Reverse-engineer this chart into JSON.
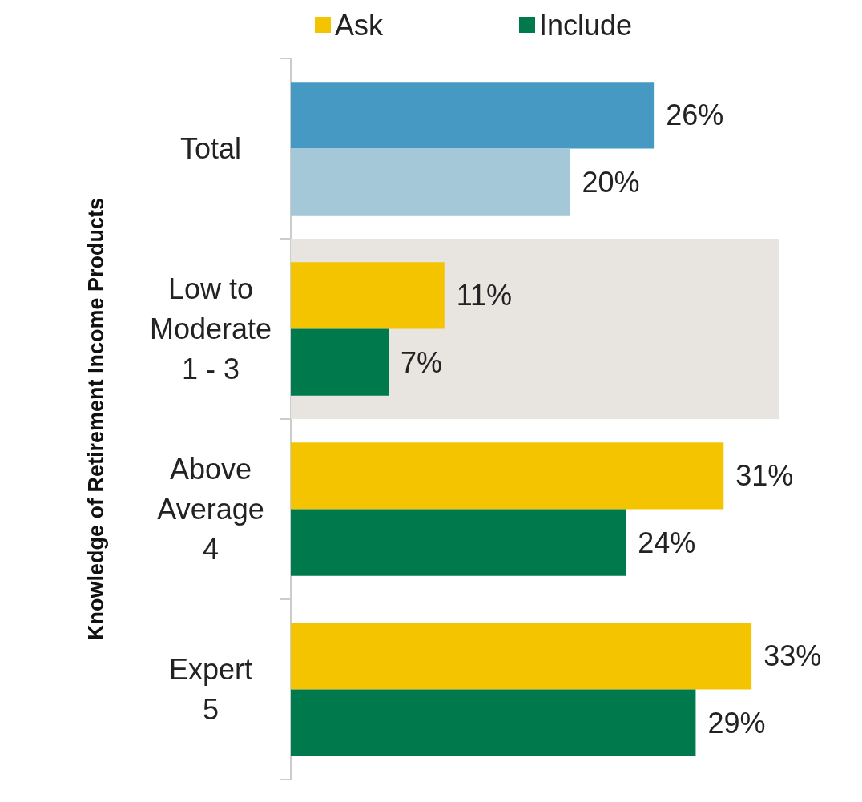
{
  "chart_data": {
    "type": "bar",
    "orientation": "horizontal",
    "ylabel": "Knowledge of Retirement Income Products",
    "categories": [
      "Total",
      "Low to\nModerate\n1 - 3",
      "Above\nAverage\n4",
      "Expert\n5"
    ],
    "series": [
      {
        "name": "Ask",
        "color": "#f5c400",
        "colors": [
          "#4599c3",
          "#f5c400",
          "#f5c400",
          "#f5c400"
        ],
        "values": [
          26,
          11,
          31,
          33
        ],
        "value_labels": [
          "26%",
          "11%",
          "31%",
          "33%"
        ]
      },
      {
        "name": "Include",
        "color": "#007a4d",
        "colors": [
          "#a5c8d8",
          "#007a4d",
          "#007a4d",
          "#007a4d"
        ],
        "values": [
          20,
          7,
          24,
          29
        ],
        "value_labels": [
          "20%",
          "7%",
          "24%",
          "29%"
        ]
      }
    ],
    "bands": [
      {
        "axis": "y",
        "from": "Low to\nModerate\n1 - 3",
        "to": "Low to\nModerate\n1 - 3",
        "color": "#e8e5e1"
      }
    ],
    "legend": "top",
    "grid": false
  }
}
